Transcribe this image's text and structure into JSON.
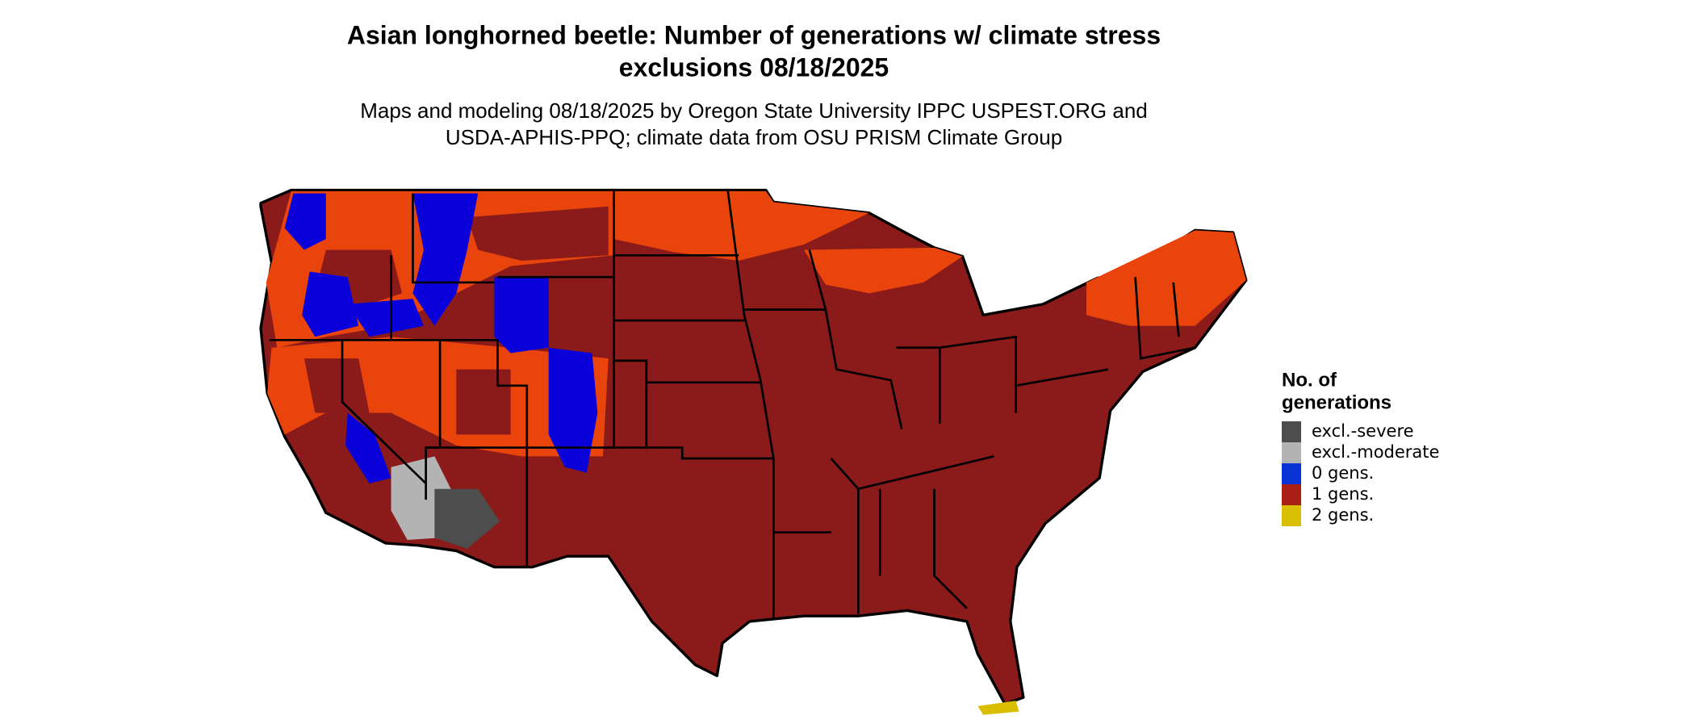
{
  "header": {
    "title": [
      "Asian longhorned beetle: Number of generations w/ climate stress",
      "exclusions 08/18/2025"
    ],
    "subtitle": [
      "Maps and modeling 08/18/2025 by Oregon State University IPPC USPEST.ORG and",
      "USDA-APHIS-PPQ; climate data from OSU PRISM Climate Group"
    ]
  },
  "legend": {
    "title": [
      "No. of",
      "generations"
    ],
    "items": [
      {
        "label": "excl.-severe",
        "color": "#4d4d4d"
      },
      {
        "label": "excl.-moderate",
        "color": "#b3b3b3"
      },
      {
        "label": "0 gens.",
        "color": "#0a33d6"
      },
      {
        "label": "1 gens.",
        "color": "#a81f14"
      },
      {
        "label": "2 gens.",
        "color": "#d9bf00"
      }
    ]
  }
}
